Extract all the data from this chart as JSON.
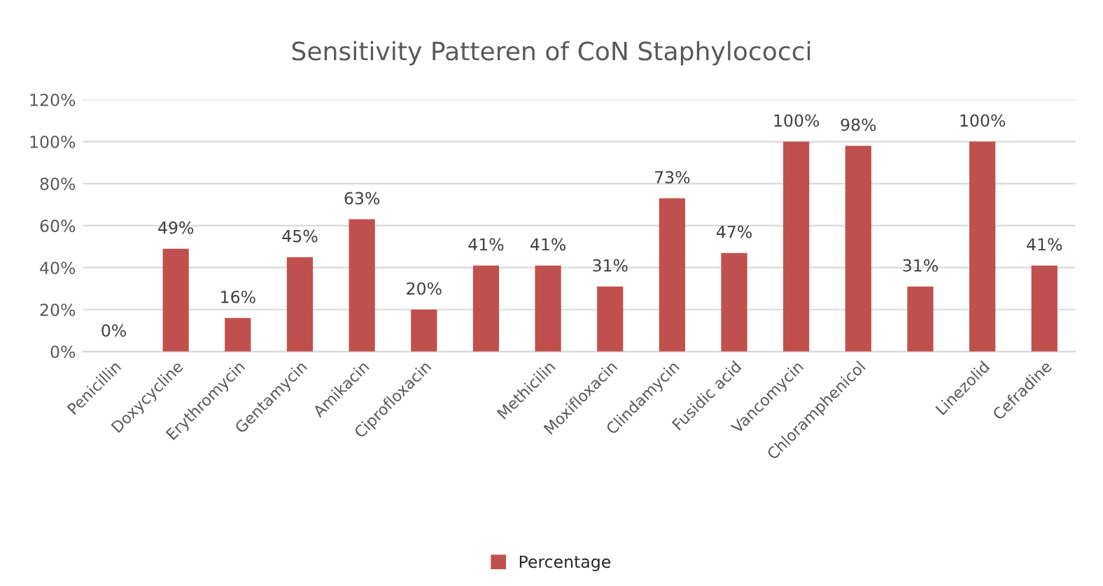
{
  "chart_data": {
    "type": "bar",
    "title": "Sensitivity Patteren of CoN Staphylococci",
    "categories": [
      "Penicillin",
      "Doxycycline",
      "Erythromycin",
      "Gentamycin",
      "Amikacin",
      "Ciprofloxacin",
      null,
      "Methicilin",
      "Moxifloxacin",
      "Clindamycin",
      "Fusidic acid",
      "Vancomycin",
      "Chloramphenicol",
      null,
      "Linezolid",
      "Cefradine"
    ],
    "series": [
      {
        "name": "Percentage",
        "color": "#c0504d",
        "values": [
          0,
          49,
          16,
          45,
          63,
          20,
          41,
          41,
          31,
          73,
          47,
          100,
          98,
          31,
          100,
          41
        ],
        "value_labels": [
          "0%",
          "49%",
          "16%",
          "45%",
          "63%",
          "20%",
          "41%",
          "41%",
          "31%",
          "73%",
          "47%",
          "100%",
          "98%",
          "31%",
          "100%",
          "41%"
        ]
      }
    ],
    "ylim": [
      0,
      120
    ],
    "yticks": [
      {
        "value": 0,
        "label": "0%"
      },
      {
        "value": 20,
        "label": "20%"
      },
      {
        "value": 40,
        "label": "40%"
      },
      {
        "value": 60,
        "label": "60%"
      },
      {
        "value": 80,
        "label": "80%"
      },
      {
        "value": 100,
        "label": "100%"
      },
      {
        "value": 120,
        "label": "120%"
      }
    ],
    "grid": "y",
    "legend": "bottom"
  }
}
